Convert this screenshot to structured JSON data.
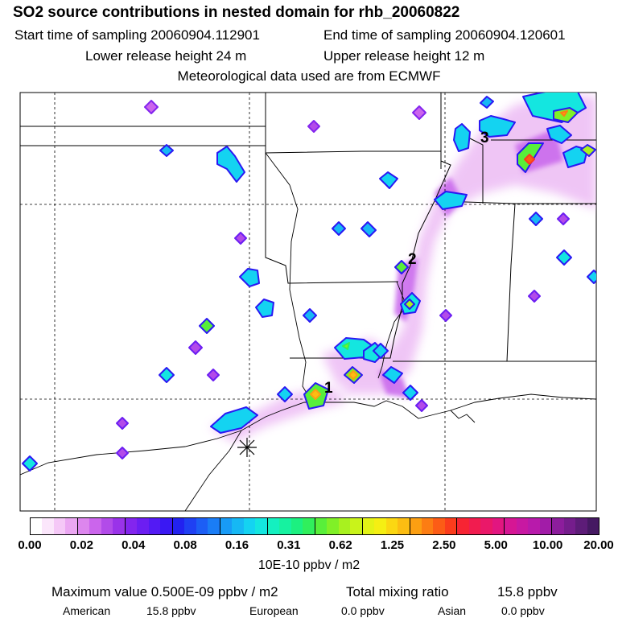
{
  "header": {
    "title": "SO2 source contributions in nested domain for rhb_20060822",
    "start_time": "Start time of sampling 20060904.112901",
    "end_time": "End time of sampling 20060904.120601",
    "lower_release": "Lower release height   24 m",
    "upper_release": "Upper release height   12 m",
    "met_source": "Meteorological data used are from ECMWF"
  },
  "map": {
    "markers": [
      "1",
      "2",
      "3"
    ],
    "release_site": "release-site-star"
  },
  "colorbar": {
    "ticks": [
      "0.00",
      "0.02",
      "0.04",
      "0.08",
      "0.16",
      "0.31",
      "0.62",
      "1.25",
      "2.50",
      "5.00",
      "10.00",
      "20.00"
    ],
    "colors": [
      "#ffffff",
      "#fbe6fb",
      "#f5c8f7",
      "#eba7f2",
      "#dd86ee",
      "#cb65ec",
      "#b24be9",
      "#9a33e9",
      "#8325ee",
      "#6c1ef2",
      "#531af4",
      "#3a18f3",
      "#2222f0",
      "#1f40f3",
      "#1c5ef5",
      "#1a7df6",
      "#189bf6",
      "#16b8f4",
      "#14d3f1",
      "#14e6e0",
      "#14f0c0",
      "#16f2a0",
      "#1cf080",
      "#30ef5c",
      "#58ef3a",
      "#80f027",
      "#a8f11f",
      "#c9f31a",
      "#e3f316",
      "#f5ef13",
      "#fbd712",
      "#fcbd12",
      "#fc9f12",
      "#fc7d13",
      "#fc5c16",
      "#fb3c1c",
      "#f72433",
      "#f11c4f",
      "#ea1869",
      "#e21680",
      "#d61694",
      "#c818a2",
      "#b81aab",
      "#a21ca8",
      "#8c1d9c",
      "#751d8c",
      "#5d1c78",
      "#451962"
    ],
    "units": "10E-10 ppbv / m2"
  },
  "stats": {
    "maximum": "Maximum value  0.500E-09 ppbv / m2",
    "total": "Total mixing ratio",
    "total_value": "15.8 ppbv"
  },
  "sources": [
    {
      "name": "American",
      "value": "15.8 ppbv"
    },
    {
      "name": "European",
      "value": "0.0 ppbv"
    },
    {
      "name": "Asian",
      "value": "0.0 ppbv"
    }
  ]
}
